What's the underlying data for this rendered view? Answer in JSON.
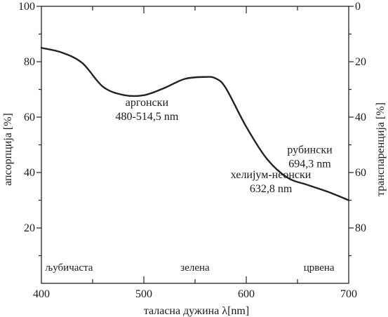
{
  "chart_data": {
    "type": "line",
    "xlabel": "таласна дужина λ[nm]",
    "ylabel_left": "апсорпција [%]",
    "ylabel_right": "транспаренција [%]",
    "xlim": [
      400,
      700
    ],
    "ylim_left": [
      0,
      100
    ],
    "ylim_right": [
      100,
      0
    ],
    "x_ticks": [
      400,
      500,
      600,
      700
    ],
    "x_minor_ticks": [
      450,
      550,
      650
    ],
    "y_ticks_left": [
      20,
      40,
      60,
      80,
      100
    ],
    "y_ticks_right": [
      0,
      20,
      40,
      60,
      80
    ],
    "grid": false,
    "series": [
      {
        "x": [
          400,
          420,
          440,
          460,
          480,
          500,
          520,
          540,
          560,
          570,
          580,
          600,
          620,
          640,
          660,
          680,
          700
        ],
        "y": [
          85,
          83.3,
          79.5,
          71,
          68,
          67.9,
          70.5,
          73.8,
          74.5,
          74,
          70.5,
          56.5,
          45,
          38.2,
          35.5,
          33,
          30
        ]
      }
    ],
    "annotations": [
      {
        "lines": [
          "аргонски",
          "480-514,5 nm"
        ],
        "x": 503,
        "y": 62
      },
      {
        "lines": [
          "рубински",
          "694,3 nm"
        ],
        "x": 662,
        "y": 45
      },
      {
        "lines": [
          "хелијум-неонски",
          "632,8 nm"
        ],
        "x": 624,
        "y": 36
      }
    ],
    "bands": [
      {
        "label": "љубичаста",
        "x": 427
      },
      {
        "label": "зелена",
        "x": 550
      },
      {
        "label": "црвена",
        "x": 671
      }
    ]
  }
}
